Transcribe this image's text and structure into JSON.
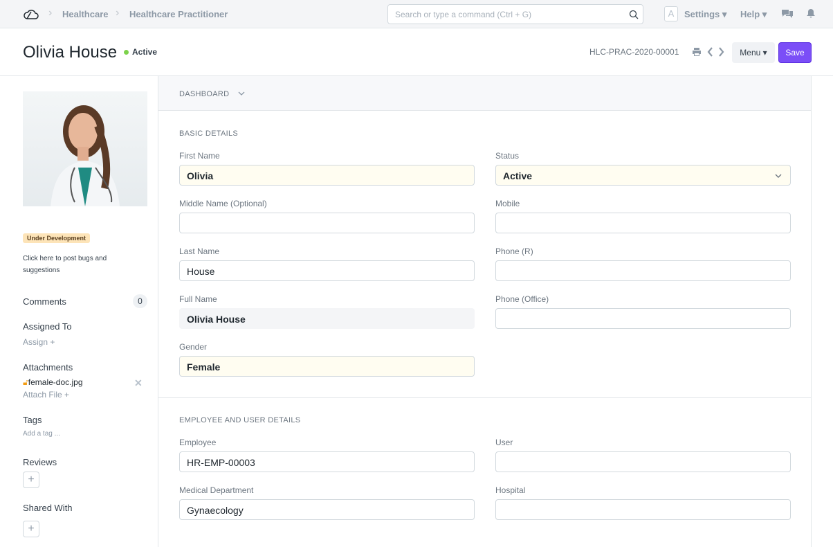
{
  "topbar": {
    "breadcrumbs": [
      "Healthcare",
      "Healthcare Practitioner"
    ],
    "search_placeholder": "Search or type a command (Ctrl + G)",
    "avatar_letter": "A",
    "settings": "Settings",
    "help": "Help"
  },
  "header": {
    "title": "Olivia House",
    "status": "Active",
    "status_color": "#7cd24b",
    "doc_id": "HLC-PRAC-2020-00001",
    "menu": "Menu",
    "save": "Save",
    "save_color": "#7b4ef7"
  },
  "sidebar": {
    "badge": "Under Development",
    "bug_text_1": "Click here to post bugs and",
    "bug_text_2": "suggestions",
    "comments": "Comments",
    "comments_count": "0",
    "assigned_to": "Assigned To",
    "assign": "Assign",
    "attachments": "Attachments",
    "attachment_file": "female-doc.jpg",
    "attach_file": "Attach File",
    "tags": "Tags",
    "add_tag": "Add a tag ...",
    "reviews": "Reviews",
    "shared_with": "Shared With"
  },
  "main": {
    "dashboard": "DASHBOARD",
    "basic": {
      "heading": "BASIC DETAILS",
      "first_name": {
        "label": "First Name",
        "value": "Olivia"
      },
      "middle_name": {
        "label": "Middle Name (Optional)",
        "value": ""
      },
      "last_name": {
        "label": "Last Name",
        "value": "House"
      },
      "full_name": {
        "label": "Full Name",
        "value": "Olivia House"
      },
      "gender": {
        "label": "Gender",
        "value": "Female"
      },
      "status": {
        "label": "Status",
        "value": "Active"
      },
      "mobile": {
        "label": "Mobile",
        "value": ""
      },
      "phone_r": {
        "label": "Phone (R)",
        "value": ""
      },
      "phone_office": {
        "label": "Phone (Office)",
        "value": ""
      }
    },
    "employee": {
      "heading": "EMPLOYEE AND USER DETAILS",
      "employee": {
        "label": "Employee",
        "value": "HR-EMP-00003"
      },
      "user": {
        "label": "User",
        "value": ""
      },
      "medical_department": {
        "label": "Medical Department",
        "value": "Gynaecology"
      },
      "hospital": {
        "label": "Hospital",
        "value": ""
      }
    }
  }
}
